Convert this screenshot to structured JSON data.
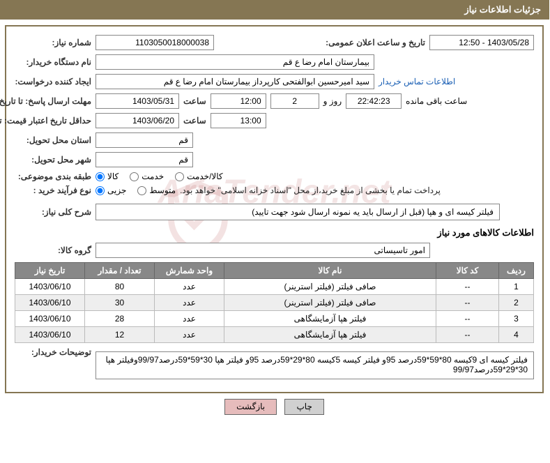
{
  "header": {
    "title": "جزئیات اطلاعات نیاز"
  },
  "fields": {
    "need_number_label": "شماره نیاز:",
    "need_number": "1103050018000038",
    "announce_label": "تاریخ و ساعت اعلان عمومی:",
    "announce_value": "1403/05/28 - 12:50",
    "buyer_org_label": "نام دستگاه خریدار:",
    "buyer_org": "بیمارستان امام رضا ع  قم",
    "requester_label": "ایجاد کننده درخواست:",
    "requester": "سید امیرحسین ابوالفتحی کارپرداز بیمارستان امام رضا ع  قم",
    "contact_link": "اطلاعات تماس خریدار",
    "deadline_label": "مهلت ارسال پاسخ: تا تاریخ:",
    "deadline_date": "1403/05/31",
    "time_label": "ساعت",
    "deadline_time": "12:00",
    "days_remaining": "2",
    "days_word": "روز و",
    "countdown": "22:42:23",
    "remaining_label": "ساعت باقی مانده",
    "validity_label": "حداقل تاریخ اعتبار قیمت: تا تاریخ:",
    "validity_date": "1403/06/20",
    "validity_time": "13:00",
    "province_label": "استان محل تحویل:",
    "province": "قم",
    "city_label": "شهر محل تحویل:",
    "city": "قم",
    "category_label": "طبقه بندی موضوعی:",
    "cat_goods": "کالا",
    "cat_service": "خدمت",
    "cat_both": "کالا/خدمت",
    "process_label": "نوع فرآیند خرید :",
    "proc_partial": "جزیی",
    "proc_medium": "متوسط",
    "payment_note": "پرداخت تمام یا بخشی از مبلغ خرید،از محل \"اسناد خزانه اسلامی\" خواهد بود.",
    "need_desc_label": "شرح کلی نیاز:",
    "need_desc": "فیلتر کیسه ای و هپا (قبل از ارسال باید یه نمونه ارسال شود جهت تایید)",
    "goods_info_title": "اطلاعات کالاهای مورد نیاز",
    "group_label": "گروه کالا:",
    "group_value": "امور تاسیساتی",
    "buyer_notes_label": "توضیحات خریدار:",
    "buyer_notes": "فیلتر کیسه ای 9کیسه 80*59*59درصد 95و فیلتر کیسه 5کیسه 80*29*59درصد 95و فیلتر هپا 30*59*59درصد99/97وفیلتر هپا 30*29*59درصد99/97"
  },
  "table": {
    "headers": {
      "row": "ردیف",
      "code": "کد کالا",
      "name": "نام کالا",
      "unit": "واحد شمارش",
      "qty": "تعداد / مقدار",
      "date": "تاریخ نیاز"
    },
    "rows": [
      {
        "n": "1",
        "code": "--",
        "name": "صافی فیلتر (فیلتر استرینر)",
        "unit": "عدد",
        "qty": "80",
        "date": "1403/06/10"
      },
      {
        "n": "2",
        "code": "--",
        "name": "صافی فیلتر (فیلتر استرینر)",
        "unit": "عدد",
        "qty": "30",
        "date": "1403/06/10"
      },
      {
        "n": "3",
        "code": "--",
        "name": "فیلتر هپا آزمایشگاهی",
        "unit": "عدد",
        "qty": "28",
        "date": "1403/06/10"
      },
      {
        "n": "4",
        "code": "--",
        "name": "فیلتر هپا آزمایشگاهی",
        "unit": "عدد",
        "qty": "12",
        "date": "1403/06/10"
      }
    ]
  },
  "buttons": {
    "print": "چاپ",
    "back": "بازگشت"
  },
  "watermark": "AriaTender.net",
  "colors": {
    "header_bg": "#857653",
    "link": "#1a5fb4",
    "th_bg": "#888888"
  }
}
